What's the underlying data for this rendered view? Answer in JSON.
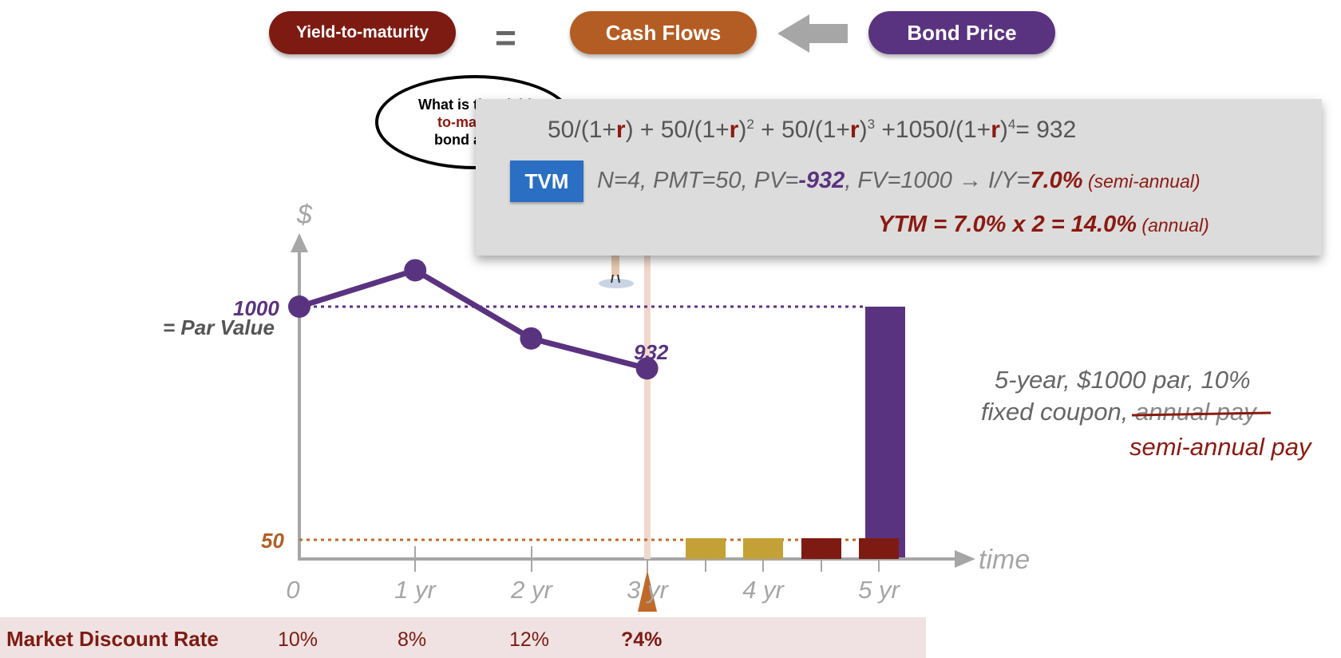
{
  "header": {
    "ytm_label": "Yield-to-maturity",
    "equals": "=",
    "cash_flows_label": "Cash Flows",
    "bond_price_label": "Bond Price"
  },
  "bubble": {
    "line1": "What is the yield",
    "line2": "to-maturity",
    "line3": "bond at this"
  },
  "formula": {
    "parts": [
      "50/(1+",
      "r",
      ") + 50/(1+",
      "r",
      ")",
      "2",
      " + 50/(1+",
      "r",
      ")",
      "3",
      " +1050/(1+",
      "r",
      ")",
      "4",
      "= 932"
    ],
    "tvm_badge": "TVM",
    "tvm_prefix": "N=4, PMT=50, PV=",
    "tvm_pv": "-932",
    "tvm_mid": ", FV=1000  →   I/Y=",
    "tvm_iy": "7.0%",
    "tvm_suffix": " (semi-annual)",
    "ytm_text": "YTM =  7.0% x 2 = 14.0%",
    "ytm_suffix": " (annual)"
  },
  "chart": {
    "y_symbol": "$",
    "par_value_number": "1000",
    "par_value_label": "= Par Value",
    "coupon_value": "50",
    "price_label": "932",
    "x_axis_label": "time",
    "x_ticks": [
      "0",
      "1 yr",
      "2 yr",
      "3 yr",
      "4 yr",
      "5 yr"
    ]
  },
  "chart_data": {
    "type": "line",
    "x": [
      0,
      1,
      1.5,
      2,
      2.5,
      3
    ],
    "price_series": [
      {
        "year": 0,
        "price": 1000
      },
      {
        "year": 1,
        "price": 1040
      },
      {
        "year": 2,
        "price": 965
      },
      {
        "year": 3,
        "price": 932
      }
    ],
    "remaining_coupons": [
      {
        "year": 3.5,
        "amount": 50
      },
      {
        "year": 4,
        "amount": 50
      },
      {
        "year": 4.5,
        "amount": 50
      },
      {
        "year": 5,
        "amount": 50
      }
    ],
    "principal": {
      "year": 5,
      "amount": 1000
    },
    "colors": {
      "price": "#5a3380",
      "coupon_gold": "#c4a136",
      "coupon_red": "#7d1b13",
      "principal": "#5a3380"
    }
  },
  "description": {
    "line1": "5-year, $1000 par, 10%",
    "line2_prefix": "fixed coupon, ",
    "line2_struck": "annual pay",
    "line3": "semi-annual pay"
  },
  "market_discount": {
    "title": "Market Discount Rate",
    "rates": [
      "10%",
      "8%",
      "12%",
      "?4%"
    ]
  }
}
